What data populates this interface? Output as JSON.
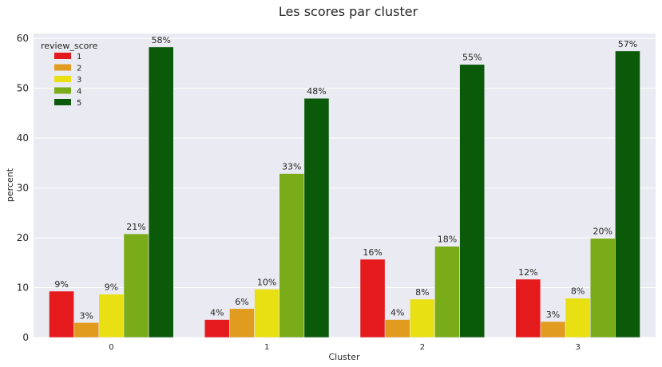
{
  "chart_data": {
    "type": "bar",
    "title": "Les scores par cluster",
    "xlabel": "Cluster",
    "ylabel": "percent",
    "categories": [
      "0",
      "1",
      "2",
      "3"
    ],
    "ylim": [
      0,
      61
    ],
    "yticks": [
      0,
      10,
      20,
      30,
      40,
      50,
      60
    ],
    "grid": true,
    "legend": {
      "title": "review_score",
      "placement": "top-left"
    },
    "series": [
      {
        "name": "1",
        "color": "#e41a1c",
        "values": [
          9.3,
          3.6,
          15.7,
          11.7
        ],
        "labels": [
          "9%",
          "4%",
          "16%",
          "12%"
        ]
      },
      {
        "name": "2",
        "color": "#e19b1e",
        "values": [
          3.0,
          5.8,
          3.6,
          3.2
        ],
        "labels": [
          "3%",
          "6%",
          "4%",
          "3%"
        ]
      },
      {
        "name": "3",
        "color": "#e8e013",
        "values": [
          8.7,
          9.7,
          7.7,
          7.9
        ],
        "labels": [
          "9%",
          "10%",
          "8%",
          "8%"
        ]
      },
      {
        "name": "4",
        "color": "#7aab18",
        "values": [
          20.8,
          32.9,
          18.3,
          19.9
        ],
        "labels": [
          "21%",
          "33%",
          "18%",
          "20%"
        ]
      },
      {
        "name": "5",
        "color": "#0b5a0a",
        "values": [
          58.3,
          48.0,
          54.8,
          57.5
        ],
        "labels": [
          "58%",
          "48%",
          "55%",
          "57%"
        ]
      }
    ]
  }
}
